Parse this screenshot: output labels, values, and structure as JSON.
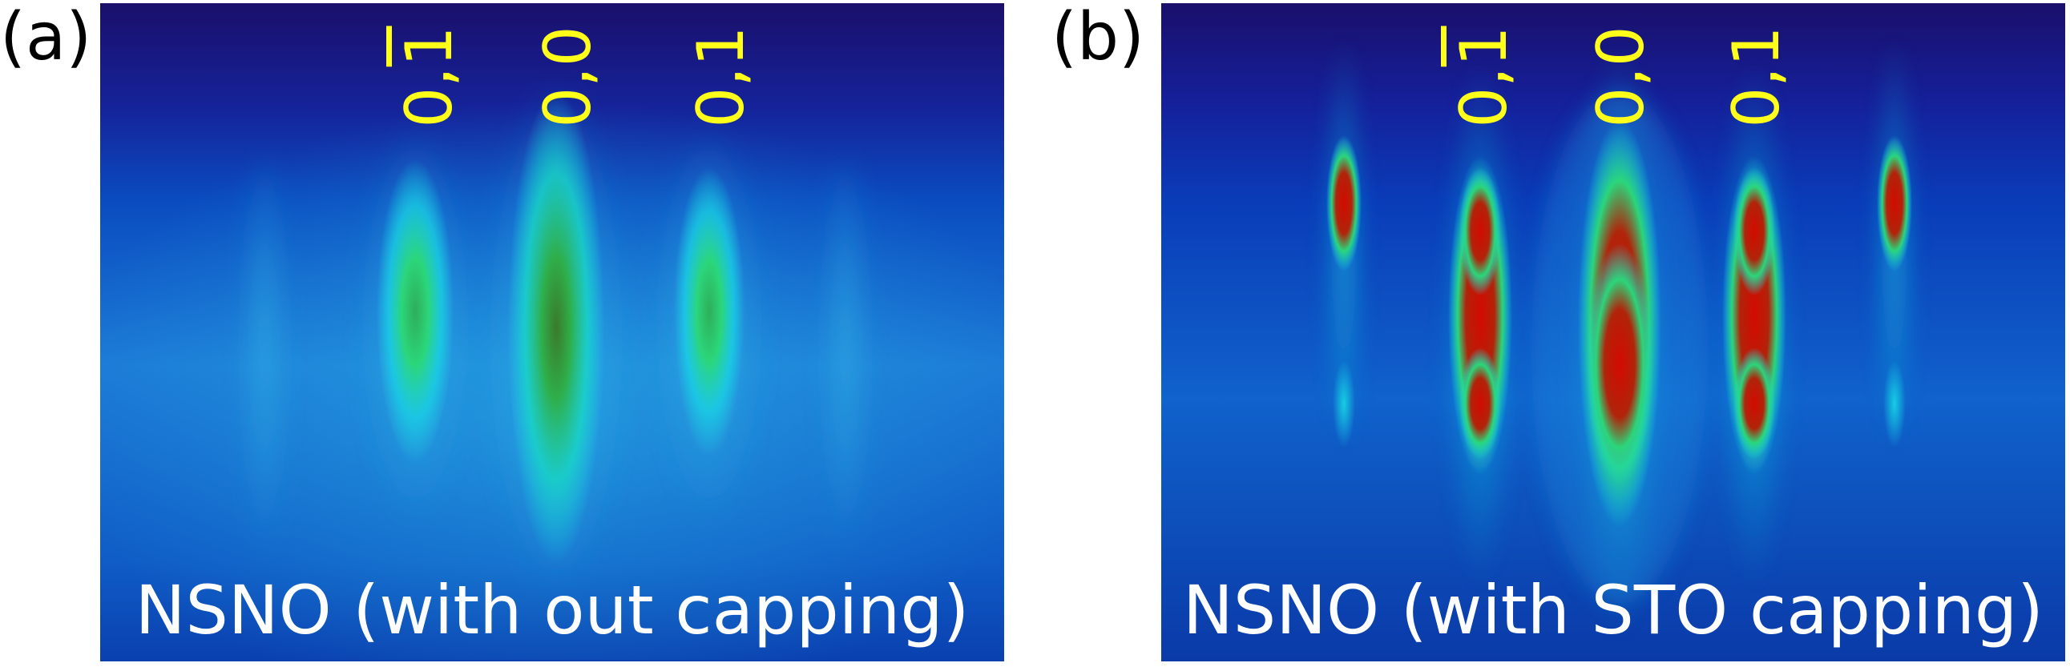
{
  "panels": [
    {
      "letter": "(a)",
      "caption": "NSNO (with out capping)",
      "labels": [
        {
          "h": "0,",
          "k": "1",
          "bar": true
        },
        {
          "h": "0,",
          "k": "0",
          "bar": false
        },
        {
          "h": "0,",
          "k": "1",
          "bar": false
        }
      ]
    },
    {
      "letter": "(b)",
      "caption": "NSNO (with STO capping)",
      "labels": [
        {
          "h": "0,",
          "k": "1",
          "bar": true
        },
        {
          "h": "0,",
          "k": "0",
          "bar": false
        },
        {
          "h": "0,",
          "k": "1",
          "bar": false
        }
      ]
    }
  ],
  "colors": {
    "background_top": "#1a0f6b",
    "background": "#0a4cc0",
    "streak_halo": "#18d8e6",
    "streak_mid": "#2bd67a",
    "streak_core": "#d40a00",
    "label": "#ffff1a",
    "caption": "#ffffff"
  }
}
